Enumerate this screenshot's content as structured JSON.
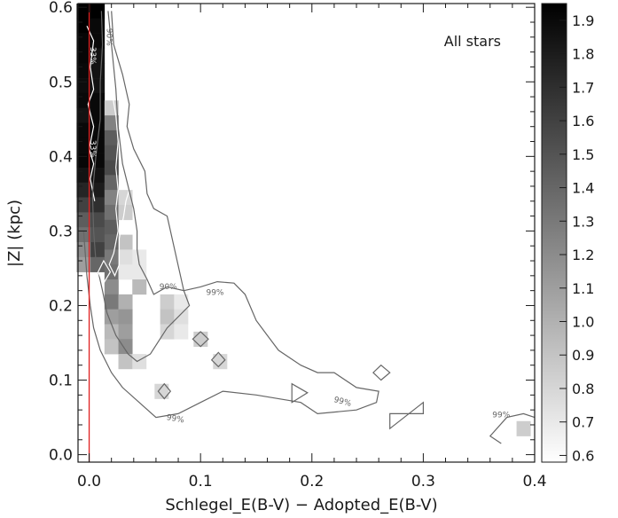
{
  "chart_data": {
    "type": "heatmap",
    "xlabel": "Schlegel_E(B-V) − Adopted_E(B-V)",
    "ylabel": "|Z| (kpc)",
    "annotation": "All stars",
    "xlim": [
      -0.01,
      0.4
    ],
    "ylim": [
      -0.01,
      0.605
    ],
    "x_ticks": [
      0.0,
      0.1,
      0.2,
      0.3,
      0.4
    ],
    "x_tick_labels": [
      "0.0",
      "0.1",
      "0.2",
      "0.3",
      "0.4"
    ],
    "y_ticks": [
      0.0,
      0.1,
      0.2,
      0.3,
      0.4,
      0.5,
      0.6
    ],
    "y_tick_labels": [
      "0.0",
      "0.1",
      "0.2",
      "0.3",
      "0.4",
      "0.5",
      "0.6"
    ],
    "colorbar": {
      "range": [
        0.58,
        1.95
      ],
      "ticks": [
        0.6,
        0.7,
        0.8,
        0.9,
        1.0,
        1.1,
        1.2,
        1.3,
        1.4,
        1.5,
        1.6,
        1.7,
        1.8,
        1.9
      ],
      "tick_labels": [
        "0.6",
        "0.7",
        "0.8",
        "0.9",
        "1.0",
        "1.1",
        "1.2",
        "1.3",
        "1.4",
        "1.5",
        "1.6",
        "1.7",
        "1.8",
        "1.9"
      ]
    },
    "reference_line": {
      "x": 0.0,
      "color": "#e02020"
    },
    "bin_width": 0.0125,
    "bin_height": 0.02,
    "cells": [
      [
        -0.005,
        0.595,
        1.95
      ],
      [
        -0.005,
        0.575,
        1.95
      ],
      [
        -0.005,
        0.555,
        1.92
      ],
      [
        -0.005,
        0.535,
        1.92
      ],
      [
        -0.005,
        0.515,
        1.9
      ],
      [
        -0.005,
        0.495,
        1.88
      ],
      [
        -0.005,
        0.475,
        1.9
      ],
      [
        -0.005,
        0.455,
        1.85
      ],
      [
        -0.005,
        0.435,
        1.9
      ],
      [
        -0.005,
        0.415,
        1.9
      ],
      [
        -0.005,
        0.395,
        1.92
      ],
      [
        -0.005,
        0.375,
        1.85
      ],
      [
        -0.005,
        0.355,
        1.75
      ],
      [
        -0.005,
        0.335,
        1.6
      ],
      [
        -0.005,
        0.315,
        1.45
      ],
      [
        -0.005,
        0.295,
        1.35
      ],
      [
        -0.005,
        0.275,
        1.2
      ],
      [
        -0.005,
        0.255,
        1.1
      ],
      [
        0.0075,
        0.595,
        1.95
      ],
      [
        0.0075,
        0.575,
        1.9
      ],
      [
        0.0075,
        0.555,
        1.9
      ],
      [
        0.0075,
        0.535,
        1.85
      ],
      [
        0.0075,
        0.515,
        1.85
      ],
      [
        0.0075,
        0.495,
        1.85
      ],
      [
        0.0075,
        0.475,
        1.9
      ],
      [
        0.0075,
        0.455,
        1.9
      ],
      [
        0.0075,
        0.435,
        1.9
      ],
      [
        0.0075,
        0.415,
        1.9
      ],
      [
        0.0075,
        0.395,
        1.9
      ],
      [
        0.0075,
        0.375,
        1.85
      ],
      [
        0.0075,
        0.355,
        1.8
      ],
      [
        0.0075,
        0.335,
        1.7
      ],
      [
        0.0075,
        0.315,
        1.55
      ],
      [
        0.0075,
        0.295,
        1.5
      ],
      [
        0.0075,
        0.275,
        1.6
      ],
      [
        0.0075,
        0.255,
        1.4
      ],
      [
        0.02,
        0.465,
        0.85
      ],
      [
        0.02,
        0.445,
        1.25
      ],
      [
        0.02,
        0.425,
        1.45
      ],
      [
        0.02,
        0.405,
        1.5
      ],
      [
        0.02,
        0.385,
        1.55
      ],
      [
        0.02,
        0.365,
        1.4
      ],
      [
        0.02,
        0.345,
        1.25
      ],
      [
        0.02,
        0.325,
        1.35
      ],
      [
        0.02,
        0.305,
        1.45
      ],
      [
        0.02,
        0.285,
        1.4
      ],
      [
        0.02,
        0.265,
        1.3
      ],
      [
        0.02,
        0.245,
        1.35
      ],
      [
        0.02,
        0.225,
        1.2
      ],
      [
        0.02,
        0.205,
        1.3
      ],
      [
        0.02,
        0.185,
        1.1
      ],
      [
        0.02,
        0.165,
        0.95
      ],
      [
        0.02,
        0.145,
        0.9
      ],
      [
        0.0325,
        0.345,
        0.8
      ],
      [
        0.0325,
        0.325,
        0.85
      ],
      [
        0.0325,
        0.285,
        0.9
      ],
      [
        0.0325,
        0.265,
        0.75
      ],
      [
        0.0325,
        0.245,
        0.7
      ],
      [
        0.0325,
        0.205,
        1.0
      ],
      [
        0.0325,
        0.185,
        1.15
      ],
      [
        0.0325,
        0.165,
        1.1
      ],
      [
        0.0325,
        0.145,
        1.2
      ],
      [
        0.0325,
        0.125,
        0.9
      ],
      [
        0.045,
        0.265,
        0.7
      ],
      [
        0.045,
        0.245,
        0.7
      ],
      [
        0.045,
        0.225,
        0.95
      ],
      [
        0.045,
        0.125,
        0.75
      ],
      [
        0.07,
        0.205,
        0.85
      ],
      [
        0.07,
        0.185,
        0.9
      ],
      [
        0.07,
        0.165,
        0.8
      ],
      [
        0.0825,
        0.205,
        0.7
      ],
      [
        0.0825,
        0.185,
        0.75
      ],
      [
        0.0825,
        0.165,
        0.7
      ],
      [
        0.065,
        0.085,
        0.8
      ],
      [
        0.1,
        0.155,
        0.85
      ],
      [
        0.1175,
        0.125,
        0.8
      ],
      [
        0.39,
        0.035,
        0.85
      ]
    ],
    "contours": [
      {
        "level": "33%",
        "color": "#ffffff",
        "points": [
          [
            -0.002,
            0.575
          ],
          [
            0.004,
            0.555
          ],
          [
            0.001,
            0.52
          ],
          [
            0.004,
            0.49
          ],
          [
            -0.001,
            0.47
          ],
          [
            0.004,
            0.44
          ],
          [
            0.0,
            0.41
          ],
          [
            0.004,
            0.39
          ],
          [
            0.001,
            0.37
          ],
          [
            0.005,
            0.34
          ]
        ]
      },
      {
        "level": "90%",
        "color": "#ffffff",
        "points": [
          [
            0.017,
            0.595
          ],
          [
            0.018,
            0.545
          ],
          [
            0.02,
            0.49
          ],
          [
            0.024,
            0.455
          ],
          [
            0.026,
            0.42
          ],
          [
            0.024,
            0.385
          ],
          [
            0.026,
            0.355
          ],
          [
            0.024,
            0.33
          ],
          [
            0.026,
            0.3
          ],
          [
            0.022,
            0.27
          ],
          [
            0.018,
            0.255
          ],
          [
            0.023,
            0.24
          ],
          [
            0.027,
            0.255
          ],
          [
            0.027,
            0.29
          ],
          [
            0.031,
            0.32
          ],
          [
            0.033,
            0.34
          ],
          [
            0.037,
            0.36
          ],
          [
            0.035,
            0.39
          ],
          [
            0.04,
            0.41
          ]
        ]
      },
      {
        "level": "90%",
        "color": "#666666",
        "points": [
          [
            0.011,
            0.595
          ],
          [
            0.012,
            0.55
          ],
          [
            0.01,
            0.5
          ],
          [
            0.01,
            0.45
          ],
          [
            0.006,
            0.4
          ],
          [
            0.003,
            0.35
          ],
          [
            0.004,
            0.3
          ],
          [
            0.006,
            0.26
          ],
          [
            0.012,
            0.22
          ],
          [
            0.016,
            0.19
          ],
          [
            0.024,
            0.16
          ],
          [
            0.035,
            0.135
          ],
          [
            0.043,
            0.125
          ],
          [
            0.055,
            0.135
          ],
          [
            0.07,
            0.17
          ],
          [
            0.09,
            0.2
          ],
          [
            0.085,
            0.22
          ],
          [
            0.07,
            0.225
          ],
          [
            0.058,
            0.215
          ],
          [
            0.052,
            0.235
          ],
          [
            0.045,
            0.255
          ],
          [
            0.043,
            0.275
          ],
          [
            0.043,
            0.3
          ],
          [
            0.04,
            0.33
          ],
          [
            0.035,
            0.36
          ],
          [
            0.03,
            0.39
          ],
          [
            0.026,
            0.44
          ],
          [
            0.024,
            0.49
          ],
          [
            0.02,
            0.55
          ],
          [
            0.017,
            0.595
          ]
        ]
      },
      {
        "level": "99%",
        "color": "#666666",
        "points": [
          [
            0.02,
            0.595
          ],
          [
            0.022,
            0.55
          ],
          [
            0.03,
            0.51
          ],
          [
            0.036,
            0.47
          ],
          [
            0.034,
            0.44
          ],
          [
            0.04,
            0.41
          ],
          [
            0.05,
            0.38
          ],
          [
            0.052,
            0.35
          ],
          [
            0.058,
            0.33
          ],
          [
            0.07,
            0.32
          ],
          [
            0.085,
            0.22
          ],
          [
            0.1,
            0.225
          ],
          [
            0.115,
            0.232
          ],
          [
            0.13,
            0.23
          ],
          [
            0.14,
            0.215
          ],
          [
            0.15,
            0.18
          ],
          [
            0.16,
            0.16
          ],
          [
            0.17,
            0.14
          ],
          [
            0.19,
            0.12
          ],
          [
            0.205,
            0.11
          ],
          [
            0.22,
            0.11
          ],
          [
            0.24,
            0.09
          ],
          [
            0.26,
            0.085
          ],
          [
            0.258,
            0.07
          ],
          [
            0.24,
            0.06
          ],
          [
            0.205,
            0.055
          ],
          [
            0.19,
            0.07
          ],
          [
            0.15,
            0.08
          ],
          [
            0.12,
            0.085
          ],
          [
            0.1,
            0.07
          ],
          [
            0.08,
            0.055
          ],
          [
            0.06,
            0.05
          ],
          [
            0.03,
            0.09
          ],
          [
            0.02,
            0.11
          ],
          [
            0.01,
            0.14
          ],
          [
            0.004,
            0.17
          ],
          [
            0.001,
            0.2
          ],
          [
            -0.002,
            0.24
          ],
          [
            -0.005,
            0.3
          ]
        ]
      },
      {
        "level": "99%",
        "color": "#666666",
        "points": [
          [
            0.37,
            0.015
          ],
          [
            0.36,
            0.025
          ],
          [
            0.375,
            0.05
          ],
          [
            0.39,
            0.055
          ],
          [
            0.4,
            0.05
          ]
        ]
      }
    ],
    "contour_labels": [
      {
        "text": "33%",
        "x": 0.001,
        "y": 0.535,
        "color": "#ffffff",
        "rotate": 90
      },
      {
        "text": "33%",
        "x": 0.001,
        "y": 0.41,
        "color": "#ffffff",
        "rotate": 90
      },
      {
        "text": "90%",
        "x": 0.016,
        "y": 0.56,
        "color": "#666666",
        "rotate": 90
      },
      {
        "text": "90%",
        "x": 0.071,
        "y": 0.222,
        "color": "#666666",
        "rotate": 0
      },
      {
        "text": "99%",
        "x": 0.113,
        "y": 0.214,
        "color": "#666666",
        "rotate": 0
      },
      {
        "text": "99%",
        "x": 0.227,
        "y": 0.068,
        "color": "#666666",
        "rotate": 15
      },
      {
        "text": "99%",
        "x": 0.077,
        "y": 0.045,
        "color": "#666666",
        "rotate": 10
      },
      {
        "text": "99%",
        "x": 0.37,
        "y": 0.05,
        "color": "#666666",
        "rotate": 0
      }
    ],
    "islands": [
      {
        "color": "#ffffff",
        "points": [
          [
            0.013,
            0.23
          ],
          [
            0.019,
            0.245
          ],
          [
            0.013,
            0.26
          ],
          [
            0.008,
            0.245
          ]
        ]
      },
      {
        "color": "#666666",
        "points": [
          [
            0.0675,
            0.075
          ],
          [
            0.073,
            0.085
          ],
          [
            0.0675,
            0.095
          ],
          [
            0.062,
            0.085
          ]
        ]
      },
      {
        "color": "#666666",
        "points": [
          [
            0.1,
            0.145
          ],
          [
            0.107,
            0.155
          ],
          [
            0.1,
            0.165
          ],
          [
            0.093,
            0.155
          ]
        ]
      },
      {
        "color": "#666666",
        "points": [
          [
            0.116,
            0.118
          ],
          [
            0.122,
            0.127
          ],
          [
            0.116,
            0.137
          ],
          [
            0.11,
            0.127
          ]
        ]
      },
      {
        "color": "#666666",
        "points": [
          [
            0.182,
            0.095
          ],
          [
            0.196,
            0.083
          ],
          [
            0.182,
            0.07
          ]
        ]
      },
      {
        "color": "#666666",
        "points": [
          [
            0.262,
            0.1
          ],
          [
            0.27,
            0.11
          ],
          [
            0.262,
            0.12
          ],
          [
            0.255,
            0.11
          ]
        ]
      },
      {
        "color": "#666666",
        "points": [
          [
            0.27,
            0.035
          ],
          [
            0.3,
            0.07
          ],
          [
            0.3,
            0.055
          ],
          [
            0.27,
            0.055
          ]
        ]
      }
    ]
  }
}
